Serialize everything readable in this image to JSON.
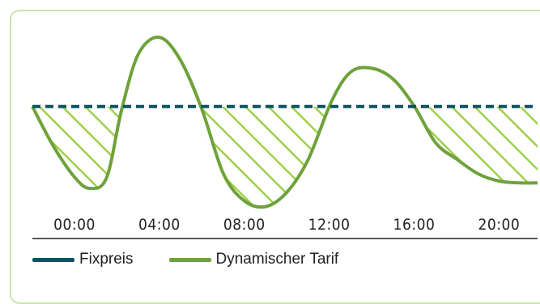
{
  "colors": {
    "fixed": "#0c5463",
    "dynamic": "#6ea23a",
    "hatch": "#9fd04a",
    "card_border": "#cfe2a8",
    "axis": "#222222"
  },
  "chart_data": {
    "type": "line",
    "title": "",
    "xlabel": "",
    "ylabel": "",
    "x_unit": "hour",
    "xlim": [
      0,
      23.8
    ],
    "ylim": [
      0,
      1
    ],
    "grid": false,
    "legend_position": "bottom-left",
    "tick_values": [
      0,
      4,
      8,
      12,
      16,
      20
    ],
    "tick_labels": [
      "00:00",
      "04:00",
      "08:00",
      "12:00",
      "16:00",
      "20:00"
    ],
    "fixed_level": 0.57,
    "series": [
      {
        "name": "Fixpreis",
        "style": "dashed",
        "x": [
          0,
          23.8
        ],
        "y": [
          0.57,
          0.57
        ]
      },
      {
        "name": "Dynamischer Tarif",
        "style": "solid",
        "x": [
          0,
          1,
          2,
          2.7,
          3.5,
          4.2,
          5,
          6,
          7,
          8,
          9,
          10,
          11,
          12,
          13,
          14.1,
          15,
          16,
          17,
          18,
          19,
          20,
          21,
          22,
          23,
          23.8
        ],
        "y": [
          0.57,
          0.35,
          0.18,
          0.12,
          0.18,
          0.55,
          0.86,
          0.95,
          0.82,
          0.55,
          0.2,
          0.05,
          0.02,
          0.1,
          0.28,
          0.6,
          0.76,
          0.78,
          0.72,
          0.57,
          0.37,
          0.28,
          0.2,
          0.16,
          0.15,
          0.15
        ]
      }
    ]
  }
}
